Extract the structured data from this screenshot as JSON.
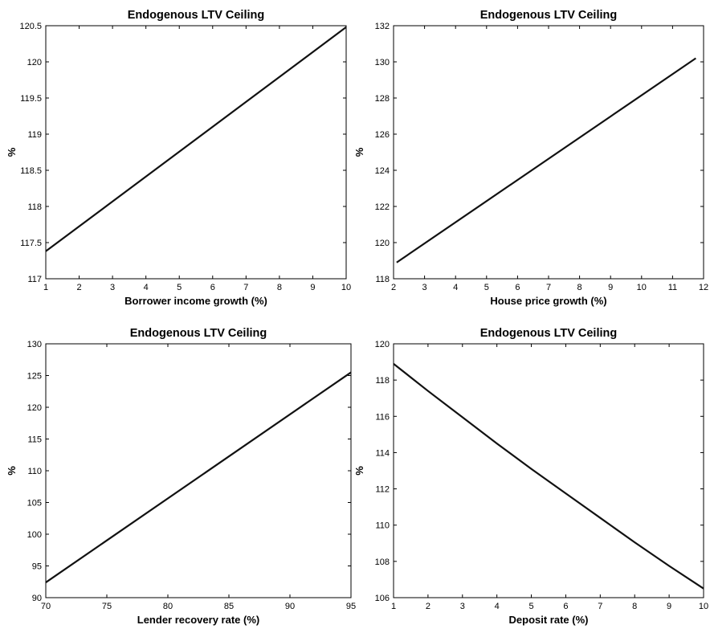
{
  "chart_data": [
    {
      "type": "line",
      "title": "Endogenous LTV Ceiling",
      "xlabel": "Borrower income growth (%)",
      "ylabel": "%",
      "xlim": [
        1,
        10
      ],
      "ylim": [
        117,
        120.5
      ],
      "xticks": [
        1,
        2,
        3,
        4,
        5,
        6,
        7,
        8,
        9,
        10
      ],
      "yticks": [
        117,
        117.5,
        118,
        118.5,
        119,
        119.5,
        120,
        120.5
      ],
      "series": [
        {
          "x": [
            1,
            10
          ],
          "y": [
            117.38,
            120.48
          ]
        }
      ]
    },
    {
      "type": "line",
      "title": "Endogenous LTV Ceiling",
      "xlabel": "House price growth (%)",
      "ylabel": "%",
      "xlim": [
        2,
        12
      ],
      "ylim": [
        118,
        132
      ],
      "xticks": [
        2,
        3,
        4,
        5,
        6,
        7,
        8,
        9,
        10,
        11,
        12
      ],
      "yticks": [
        118,
        120,
        122,
        124,
        126,
        128,
        130,
        132
      ],
      "series": [
        {
          "x": [
            2.1,
            11.75
          ],
          "y": [
            118.9,
            130.2
          ]
        }
      ]
    },
    {
      "type": "line",
      "title": "Endogenous LTV Ceiling",
      "xlabel": "Lender recovery rate (%)",
      "ylabel": "%",
      "xlim": [
        70,
        95
      ],
      "ylim": [
        90,
        130
      ],
      "xticks": [
        70,
        75,
        80,
        85,
        90,
        95
      ],
      "yticks": [
        90,
        95,
        100,
        105,
        110,
        115,
        120,
        125,
        130
      ],
      "series": [
        {
          "x": [
            70,
            95
          ],
          "y": [
            92.4,
            125.5
          ]
        }
      ]
    },
    {
      "type": "line",
      "title": "Endogenous LTV Ceiling",
      "xlabel": "Deposit rate (%)",
      "ylabel": "%",
      "xlim": [
        1,
        10
      ],
      "ylim": [
        106,
        120
      ],
      "xticks": [
        1,
        2,
        3,
        4,
        5,
        6,
        7,
        8,
        9,
        10
      ],
      "yticks": [
        106,
        108,
        110,
        112,
        114,
        116,
        118,
        120
      ],
      "series": [
        {
          "x": [
            1,
            2,
            3,
            4,
            5,
            6,
            7,
            8,
            9,
            10
          ],
          "y": [
            118.9,
            117.4,
            115.95,
            114.5,
            113.1,
            111.75,
            110.4,
            109.05,
            107.75,
            106.5
          ]
        }
      ]
    }
  ]
}
